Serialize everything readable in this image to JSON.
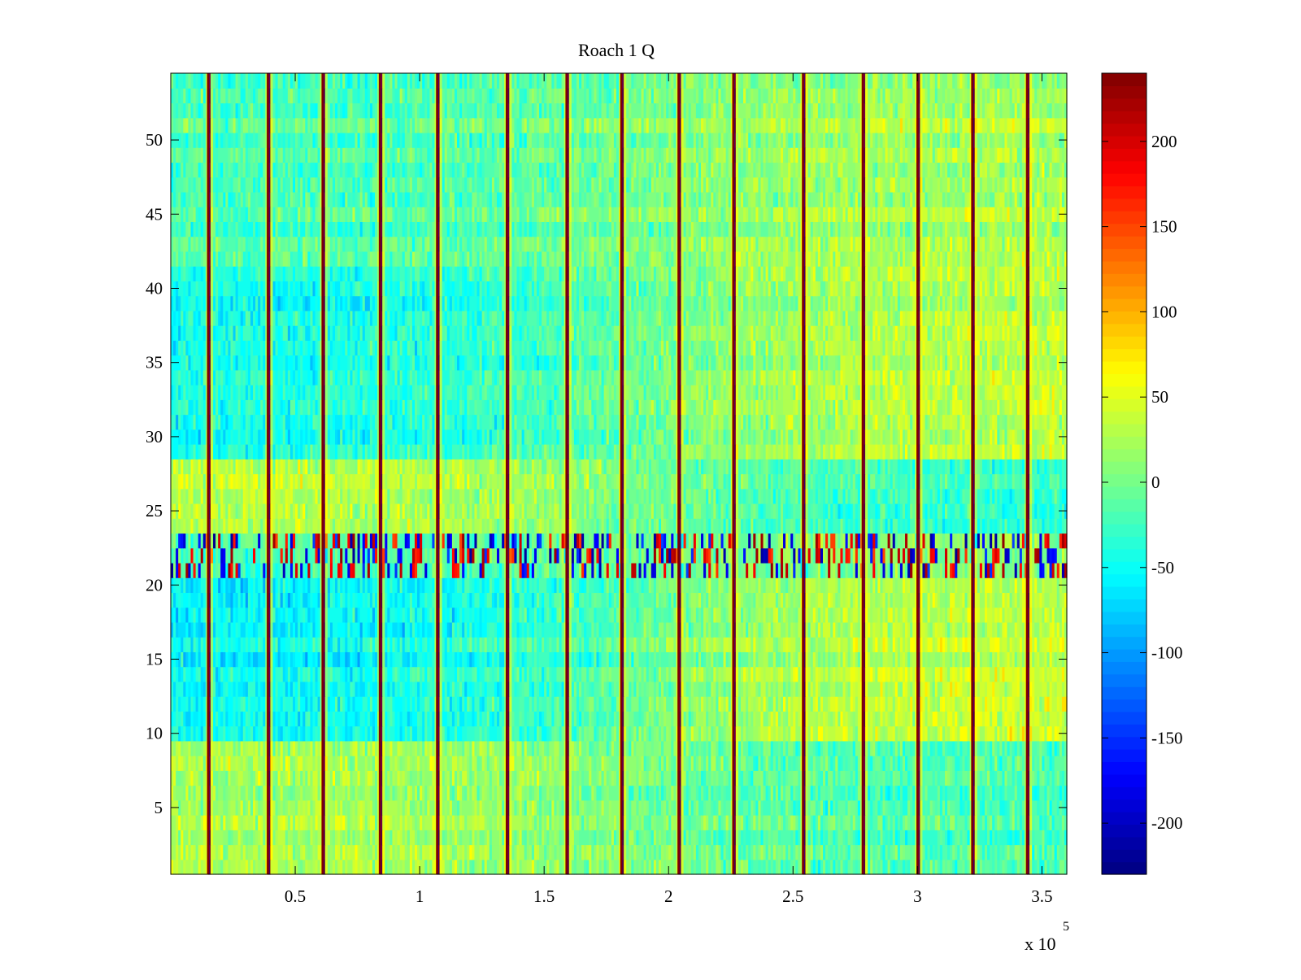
{
  "chart_data": {
    "type": "heatmap",
    "title": "Roach 1 Q",
    "xlabel": "",
    "ylabel": "",
    "x_exponent_label": "x 10",
    "x_exponent": "5",
    "xlim": [
      0,
      3.6
    ],
    "ylim": [
      0.5,
      54.5
    ],
    "x_ticks": [
      0.5,
      1,
      1.5,
      2,
      2.5,
      3,
      3.5
    ],
    "x_tick_labels": [
      "0.5",
      "1",
      "1.5",
      "2",
      "2.5",
      "3",
      "3.5"
    ],
    "y_ticks": [
      5,
      10,
      15,
      20,
      25,
      30,
      35,
      40,
      45,
      50
    ],
    "y_tick_labels": [
      "5",
      "10",
      "15",
      "20",
      "25",
      "30",
      "35",
      "40",
      "45",
      "50"
    ],
    "rows": 54,
    "columns": 360,
    "grid": false,
    "colormap": "jet",
    "colorbar": {
      "limits": [
        -230,
        240
      ],
      "ticks": [
        -200,
        -150,
        -100,
        -50,
        0,
        50,
        100,
        150,
        200
      ],
      "tick_labels": [
        "-200",
        "-150",
        "-100",
        "-50",
        "0",
        "50",
        "100",
        "150",
        "200"
      ],
      "placement": "right"
    },
    "vertical_stripe_positions_x1e5": [
      0.15,
      0.39,
      0.61,
      0.84,
      1.07,
      1.35,
      1.59,
      1.81,
      2.04,
      2.26,
      2.54,
      2.78,
      3.0,
      3.22,
      3.44
    ],
    "stripe_value_max": 240,
    "stripe_value_min": -200,
    "noisy_band_rows": [
      21,
      22,
      23
    ],
    "noisy_band_values": [
      -220,
      230
    ],
    "region_means": {
      "rows_1_9_left": 25,
      "rows_1_9_right": -20,
      "rows_10_20_left": -55,
      "rows_10_20_right": 40,
      "rows_24_28_left": 35,
      "rows_24_28_right": -30,
      "rows_29_41_left": -45,
      "rows_29_41_right": 35,
      "rows_42_54_left": -20,
      "rows_42_54_right": 25
    }
  }
}
